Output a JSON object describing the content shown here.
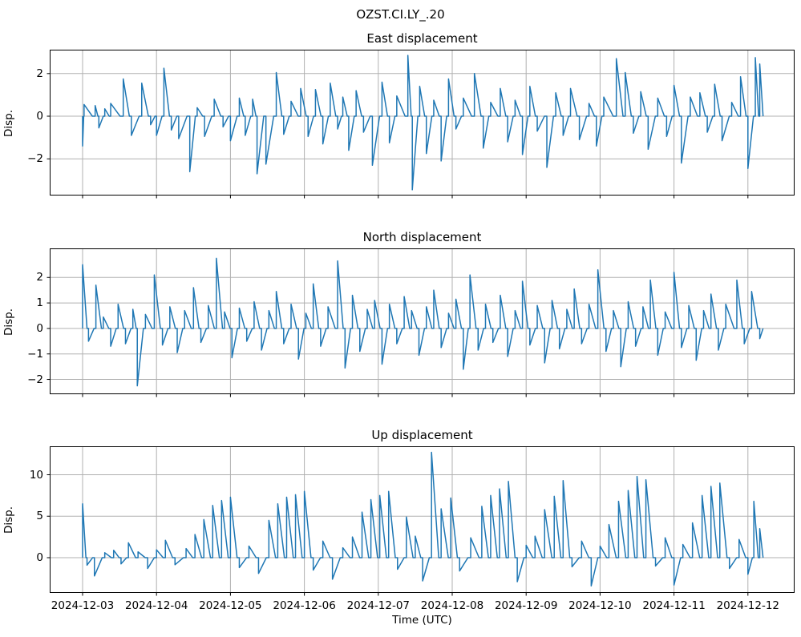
{
  "figure": {
    "suptitle": "OZST.CI.LY_.20",
    "xlabel": "Time (UTC)",
    "line_color": "#1f77b4",
    "grid_color": "#b0b0b0",
    "spine_color": "#000000",
    "background": "#ffffff"
  },
  "chart_data": [
    {
      "type": "line",
      "title": "East displacement",
      "ylabel": "Disp.",
      "grid": true,
      "legend": null,
      "xticks": [
        "2024-12-03",
        "2024-12-04",
        "2024-12-05",
        "2024-12-06",
        "2024-12-07",
        "2024-12-08",
        "2024-12-09",
        "2024-12-10",
        "2024-12-11",
        "2024-12-12"
      ],
      "xlim_days": [
        -0.445,
        9.63
      ],
      "ylim": [
        -3.72,
        3.12
      ],
      "yticks": [
        -2,
        0,
        2
      ],
      "events_format": "[days_after_2024-12-03T00:00_UTC, peak_displacement]; signal sits at 0 between spikes and decays back to 0 after each spike",
      "events": [
        [
          0.0,
          -1.4
        ],
        [
          0.02,
          0.55
        ],
        [
          0.17,
          0.5
        ],
        [
          0.22,
          -0.55
        ],
        [
          0.3,
          0.35
        ],
        [
          0.38,
          0.6
        ],
        [
          0.55,
          1.75
        ],
        [
          0.66,
          -0.9
        ],
        [
          0.8,
          1.55
        ],
        [
          0.92,
          -0.4
        ],
        [
          1.0,
          -0.9
        ],
        [
          1.1,
          2.25
        ],
        [
          1.2,
          -0.65
        ],
        [
          1.3,
          -1.05
        ],
        [
          1.45,
          -2.6
        ],
        [
          1.55,
          0.4
        ],
        [
          1.65,
          -0.95
        ],
        [
          1.78,
          0.8
        ],
        [
          1.9,
          -0.5
        ],
        [
          2.0,
          -1.15
        ],
        [
          2.12,
          0.85
        ],
        [
          2.2,
          -0.9
        ],
        [
          2.3,
          0.8
        ],
        [
          2.36,
          -2.7
        ],
        [
          2.48,
          -2.25
        ],
        [
          2.62,
          2.05
        ],
        [
          2.72,
          -0.85
        ],
        [
          2.82,
          0.7
        ],
        [
          2.95,
          1.3
        ],
        [
          3.05,
          -0.95
        ],
        [
          3.15,
          1.25
        ],
        [
          3.25,
          -1.3
        ],
        [
          3.35,
          1.55
        ],
        [
          3.45,
          -0.6
        ],
        [
          3.52,
          0.9
        ],
        [
          3.6,
          -1.6
        ],
        [
          3.7,
          1.2
        ],
        [
          3.8,
          -0.75
        ],
        [
          3.92,
          -2.3
        ],
        [
          4.05,
          1.6
        ],
        [
          4.15,
          -1.25
        ],
        [
          4.25,
          0.95
        ],
        [
          4.4,
          2.85
        ],
        [
          4.46,
          -3.45
        ],
        [
          4.56,
          1.4
        ],
        [
          4.65,
          -1.75
        ],
        [
          4.75,
          0.75
        ],
        [
          4.85,
          -2.1
        ],
        [
          4.95,
          1.75
        ],
        [
          5.05,
          -0.6
        ],
        [
          5.15,
          0.85
        ],
        [
          5.3,
          2.0
        ],
        [
          5.42,
          -1.5
        ],
        [
          5.52,
          0.65
        ],
        [
          5.65,
          1.3
        ],
        [
          5.75,
          -1.2
        ],
        [
          5.85,
          0.75
        ],
        [
          5.95,
          -1.8
        ],
        [
          6.05,
          1.4
        ],
        [
          6.15,
          -0.7
        ],
        [
          6.28,
          -2.4
        ],
        [
          6.4,
          1.1
        ],
        [
          6.5,
          -0.9
        ],
        [
          6.6,
          1.3
        ],
        [
          6.72,
          -1.1
        ],
        [
          6.85,
          0.6
        ],
        [
          6.95,
          -1.4
        ],
        [
          7.05,
          0.9
        ],
        [
          7.22,
          2.7
        ],
        [
          7.34,
          2.05
        ],
        [
          7.45,
          -0.8
        ],
        [
          7.55,
          1.15
        ],
        [
          7.65,
          -1.55
        ],
        [
          7.78,
          0.85
        ],
        [
          7.9,
          -0.95
        ],
        [
          8.0,
          1.45
        ],
        [
          8.1,
          -2.2
        ],
        [
          8.22,
          0.9
        ],
        [
          8.35,
          1.1
        ],
        [
          8.45,
          -0.75
        ],
        [
          8.55,
          1.5
        ],
        [
          8.65,
          -1.15
        ],
        [
          8.78,
          0.65
        ],
        [
          8.9,
          1.85
        ],
        [
          9.0,
          -2.45
        ],
        [
          9.1,
          2.75
        ],
        [
          9.16,
          2.45
        ]
      ]
    },
    {
      "type": "line",
      "title": "North displacement",
      "ylabel": "Disp.",
      "grid": true,
      "legend": null,
      "xticks": [
        "2024-12-03",
        "2024-12-04",
        "2024-12-05",
        "2024-12-06",
        "2024-12-07",
        "2024-12-08",
        "2024-12-09",
        "2024-12-10",
        "2024-12-11",
        "2024-12-12"
      ],
      "xlim_days": [
        -0.445,
        9.63
      ],
      "ylim": [
        -2.58,
        3.14
      ],
      "yticks": [
        -2,
        -1,
        0,
        1,
        2
      ],
      "events_format": "[days_after_2024-12-03T00:00_UTC, peak_displacement]; signal sits at 0 between spikes and decays back to 0 after each spike",
      "events": [
        [
          0.0,
          2.5
        ],
        [
          0.08,
          -0.5
        ],
        [
          0.18,
          1.7
        ],
        [
          0.28,
          0.45
        ],
        [
          0.38,
          -0.7
        ],
        [
          0.48,
          0.95
        ],
        [
          0.58,
          -0.6
        ],
        [
          0.68,
          0.75
        ],
        [
          0.74,
          -2.25
        ],
        [
          0.85,
          0.55
        ],
        [
          0.97,
          2.1
        ],
        [
          1.08,
          -0.65
        ],
        [
          1.18,
          0.85
        ],
        [
          1.28,
          -0.95
        ],
        [
          1.38,
          0.7
        ],
        [
          1.5,
          1.6
        ],
        [
          1.6,
          -0.55
        ],
        [
          1.7,
          0.9
        ],
        [
          1.81,
          2.75
        ],
        [
          1.92,
          0.65
        ],
        [
          2.02,
          -1.15
        ],
        [
          2.12,
          0.8
        ],
        [
          2.22,
          -0.5
        ],
        [
          2.32,
          1.05
        ],
        [
          2.42,
          -0.85
        ],
        [
          2.52,
          0.7
        ],
        [
          2.62,
          1.45
        ],
        [
          2.72,
          -0.6
        ],
        [
          2.82,
          0.95
        ],
        [
          2.92,
          -1.2
        ],
        [
          3.02,
          0.6
        ],
        [
          3.12,
          1.75
        ],
        [
          3.22,
          -0.7
        ],
        [
          3.32,
          0.85
        ],
        [
          3.45,
          2.65
        ],
        [
          3.55,
          -1.55
        ],
        [
          3.65,
          1.3
        ],
        [
          3.75,
          -0.9
        ],
        [
          3.85,
          0.75
        ],
        [
          3.95,
          1.1
        ],
        [
          4.05,
          -1.4
        ],
        [
          4.15,
          0.95
        ],
        [
          4.25,
          -0.6
        ],
        [
          4.35,
          1.25
        ],
        [
          4.45,
          0.7
        ],
        [
          4.55,
          -1.05
        ],
        [
          4.65,
          0.85
        ],
        [
          4.75,
          1.5
        ],
        [
          4.85,
          -0.75
        ],
        [
          4.95,
          0.6
        ],
        [
          5.05,
          1.15
        ],
        [
          5.15,
          -1.6
        ],
        [
          5.24,
          2.1
        ],
        [
          5.35,
          -0.85
        ],
        [
          5.45,
          0.95
        ],
        [
          5.55,
          -0.55
        ],
        [
          5.65,
          1.3
        ],
        [
          5.75,
          -1.1
        ],
        [
          5.85,
          0.7
        ],
        [
          5.95,
          1.85
        ],
        [
          6.05,
          -0.65
        ],
        [
          6.15,
          0.9
        ],
        [
          6.25,
          -1.35
        ],
        [
          6.35,
          1.1
        ],
        [
          6.45,
          -0.8
        ],
        [
          6.55,
          0.75
        ],
        [
          6.65,
          1.55
        ],
        [
          6.75,
          -0.6
        ],
        [
          6.85,
          0.95
        ],
        [
          6.97,
          2.3
        ],
        [
          7.08,
          -0.9
        ],
        [
          7.18,
          0.7
        ],
        [
          7.28,
          -1.5
        ],
        [
          7.38,
          1.05
        ],
        [
          7.48,
          -0.7
        ],
        [
          7.58,
          0.85
        ],
        [
          7.68,
          1.9
        ],
        [
          7.78,
          -1.05
        ],
        [
          7.88,
          0.65
        ],
        [
          8.0,
          2.2
        ],
        [
          8.1,
          -0.75
        ],
        [
          8.2,
          0.9
        ],
        [
          8.3,
          -1.25
        ],
        [
          8.4,
          0.7
        ],
        [
          8.5,
          1.35
        ],
        [
          8.6,
          -0.85
        ],
        [
          8.7,
          0.95
        ],
        [
          8.85,
          1.9
        ],
        [
          8.95,
          -0.6
        ],
        [
          9.05,
          1.45
        ],
        [
          9.16,
          -0.4
        ]
      ]
    },
    {
      "type": "line",
      "title": "Up displacement",
      "ylabel": "Disp.",
      "grid": true,
      "legend": null,
      "xticks": [
        "2024-12-03",
        "2024-12-04",
        "2024-12-05",
        "2024-12-06",
        "2024-12-07",
        "2024-12-08",
        "2024-12-09",
        "2024-12-10",
        "2024-12-11",
        "2024-12-12"
      ],
      "xlim_days": [
        -0.445,
        9.63
      ],
      "ylim": [
        -4.25,
        13.43
      ],
      "yticks": [
        0,
        5,
        10
      ],
      "events_format": "[days_after_2024-12-03T00:00_UTC, peak_displacement]; signal sits at 0 between spikes and decays back to 0 after each spike",
      "events": [
        [
          0.0,
          6.5
        ],
        [
          0.06,
          -0.9
        ],
        [
          0.16,
          -2.2
        ],
        [
          0.3,
          0.6
        ],
        [
          0.42,
          0.9
        ],
        [
          0.52,
          -0.75
        ],
        [
          0.62,
          1.8
        ],
        [
          0.75,
          0.7
        ],
        [
          0.88,
          -1.3
        ],
        [
          1.0,
          0.95
        ],
        [
          1.12,
          2.1
        ],
        [
          1.25,
          -0.85
        ],
        [
          1.4,
          1.1
        ],
        [
          1.52,
          2.8
        ],
        [
          1.64,
          4.6
        ],
        [
          1.76,
          6.3
        ],
        [
          1.88,
          6.9
        ],
        [
          2.0,
          7.3
        ],
        [
          2.12,
          -1.2
        ],
        [
          2.25,
          1.4
        ],
        [
          2.38,
          -1.9
        ],
        [
          2.52,
          4.5
        ],
        [
          2.64,
          6.5
        ],
        [
          2.76,
          7.3
        ],
        [
          2.88,
          7.6
        ],
        [
          3.0,
          8.0
        ],
        [
          3.12,
          -1.5
        ],
        [
          3.25,
          2.0
        ],
        [
          3.38,
          -2.6
        ],
        [
          3.52,
          1.2
        ],
        [
          3.65,
          2.5
        ],
        [
          3.78,
          5.5
        ],
        [
          3.9,
          7.0
        ],
        [
          4.02,
          7.5
        ],
        [
          4.14,
          8.0
        ],
        [
          4.26,
          -1.4
        ],
        [
          4.38,
          4.9
        ],
        [
          4.5,
          2.6
        ],
        [
          4.6,
          -2.8
        ],
        [
          4.72,
          12.7
        ],
        [
          4.85,
          5.9
        ],
        [
          4.98,
          7.2
        ],
        [
          5.1,
          -1.6
        ],
        [
          5.25,
          2.4
        ],
        [
          5.4,
          6.2
        ],
        [
          5.52,
          7.5
        ],
        [
          5.64,
          8.3
        ],
        [
          5.76,
          9.2
        ],
        [
          5.88,
          -2.9
        ],
        [
          6.0,
          1.5
        ],
        [
          6.12,
          2.6
        ],
        [
          6.25,
          5.8
        ],
        [
          6.38,
          7.4
        ],
        [
          6.5,
          9.3
        ],
        [
          6.62,
          -1.1
        ],
        [
          6.75,
          2.0
        ],
        [
          6.88,
          -3.4
        ],
        [
          7.0,
          1.4
        ],
        [
          7.12,
          4.0
        ],
        [
          7.25,
          6.8
        ],
        [
          7.38,
          8.1
        ],
        [
          7.5,
          9.8
        ],
        [
          7.62,
          9.4
        ],
        [
          7.75,
          -1.0
        ],
        [
          7.88,
          2.4
        ],
        [
          8.0,
          -3.3
        ],
        [
          8.12,
          1.6
        ],
        [
          8.25,
          4.2
        ],
        [
          8.38,
          7.5
        ],
        [
          8.5,
          8.6
        ],
        [
          8.62,
          9.0
        ],
        [
          8.75,
          -1.3
        ],
        [
          8.88,
          2.2
        ],
        [
          9.0,
          -2.0
        ],
        [
          9.08,
          6.8
        ],
        [
          9.16,
          3.5
        ]
      ]
    }
  ]
}
